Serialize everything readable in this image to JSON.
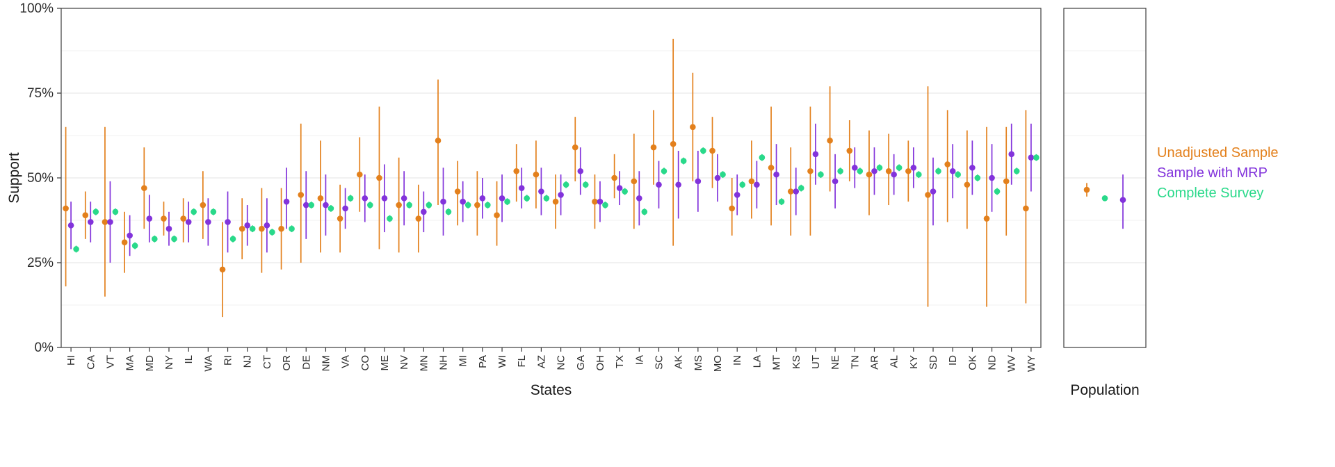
{
  "chart": {
    "legend": [
      {
        "label": "Unadjusted Sample",
        "color": "#E3801C"
      },
      {
        "label": "Sample with MRP",
        "color": "#8233DB"
      },
      {
        "label": "Complete Survey",
        "color": "#29D98A"
      }
    ],
    "axis": {
      "x_title": "States",
      "y_title": "Support",
      "population_title": "Population"
    }
  },
  "chart_data": {
    "type": "scatter",
    "title": "",
    "xlabel": "States",
    "ylabel": "Support",
    "ylim": [
      0,
      100
    ],
    "yticks": [
      0,
      25,
      50,
      75,
      100
    ],
    "ytick_labels": [
      "0%",
      "25%",
      "50%",
      "75%",
      "100%"
    ],
    "grid": "horizontal-major-and-minor",
    "legend_position": "right",
    "categories": [
      "HI",
      "CA",
      "VT",
      "MA",
      "MD",
      "NY",
      "IL",
      "WA",
      "RI",
      "NJ",
      "CT",
      "OR",
      "DE",
      "NM",
      "VA",
      "CO",
      "ME",
      "NV",
      "MN",
      "NH",
      "MI",
      "PA",
      "WI",
      "FL",
      "AZ",
      "NC",
      "GA",
      "OH",
      "TX",
      "IA",
      "SC",
      "AK",
      "MS",
      "MO",
      "IN",
      "LA",
      "MT",
      "KS",
      "UT",
      "NE",
      "TN",
      "AR",
      "AL",
      "KY",
      "SD",
      "ID",
      "OK",
      "ND",
      "WV",
      "WY"
    ],
    "series": [
      {
        "name": "Unadjusted Sample",
        "color": "#E3801C",
        "y": [
          41,
          39,
          37,
          31,
          47,
          38,
          38,
          42,
          23,
          35,
          35,
          35,
          45,
          44,
          38,
          51,
          50,
          42,
          38,
          61,
          46,
          42,
          39,
          52,
          51,
          43,
          59,
          43,
          50,
          49,
          59,
          60,
          65,
          58,
          41,
          49,
          53,
          46,
          52,
          61,
          58,
          51,
          52,
          52,
          45,
          54,
          48,
          38,
          49,
          41
        ],
        "lo": [
          18,
          32,
          15,
          22,
          35,
          33,
          31,
          32,
          9,
          26,
          22,
          23,
          25,
          28,
          28,
          40,
          29,
          28,
          28,
          42,
          36,
          33,
          30,
          43,
          41,
          35,
          49,
          35,
          44,
          35,
          48,
          30,
          49,
          47,
          33,
          38,
          36,
          33,
          33,
          46,
          49,
          39,
          42,
          43,
          12,
          37,
          35,
          12,
          33,
          13
        ],
        "hi": [
          65,
          46,
          65,
          40,
          59,
          43,
          44,
          52,
          37,
          44,
          47,
          47,
          66,
          61,
          48,
          62,
          71,
          56,
          48,
          79,
          55,
          52,
          49,
          60,
          61,
          51,
          68,
          51,
          57,
          63,
          70,
          91,
          81,
          68,
          50,
          61,
          71,
          59,
          71,
          77,
          67,
          64,
          63,
          61,
          77,
          70,
          64,
          65,
          65,
          70
        ]
      },
      {
        "name": "Sample with MRP",
        "color": "#8233DB",
        "y": [
          36,
          37,
          37,
          33,
          38,
          35,
          37,
          37,
          37,
          36,
          36,
          43,
          42,
          42,
          41,
          44,
          44,
          44,
          40,
          43,
          43,
          44,
          44,
          47,
          46,
          45,
          52,
          43,
          47,
          44,
          48,
          48,
          49,
          50,
          45,
          48,
          51,
          46,
          57,
          49,
          53,
          52,
          51,
          53,
          46,
          52,
          53,
          50,
          57,
          56
        ],
        "lo": [
          29,
          31,
          25,
          27,
          31,
          30,
          31,
          30,
          28,
          30,
          28,
          35,
          32,
          33,
          35,
          37,
          34,
          36,
          34,
          33,
          37,
          38,
          37,
          41,
          39,
          39,
          45,
          37,
          42,
          36,
          41,
          38,
          40,
          43,
          39,
          41,
          42,
          39,
          48,
          41,
          47,
          45,
          45,
          47,
          36,
          44,
          45,
          40,
          48,
          46
        ],
        "hi": [
          43,
          43,
          49,
          39,
          45,
          40,
          43,
          44,
          46,
          42,
          44,
          53,
          52,
          51,
          47,
          51,
          54,
          52,
          46,
          53,
          49,
          50,
          51,
          53,
          53,
          51,
          59,
          49,
          52,
          52,
          55,
          58,
          58,
          57,
          51,
          55,
          60,
          53,
          66,
          57,
          59,
          59,
          57,
          59,
          56,
          60,
          61,
          60,
          66,
          66
        ]
      },
      {
        "name": "Complete Survey",
        "color": "#29D98A",
        "y": [
          29,
          40,
          40,
          30,
          32,
          32,
          40,
          40,
          32,
          35,
          34,
          35,
          42,
          41,
          44,
          42,
          38,
          42,
          42,
          40,
          42,
          42,
          43,
          44,
          44,
          48,
          48,
          42,
          46,
          40,
          52,
          55,
          58,
          51,
          48,
          56,
          43,
          47,
          51,
          52,
          52,
          53,
          53,
          51,
          52,
          51,
          50,
          46,
          52,
          56
        ],
        "lo": [
          28,
          39,
          39,
          29,
          31,
          31,
          39,
          39,
          31,
          34,
          33,
          34,
          41,
          40,
          43,
          41,
          37,
          41,
          41,
          39,
          41,
          41,
          42,
          43,
          43,
          47,
          47,
          41,
          45,
          39,
          51,
          54,
          57,
          50,
          47,
          55,
          42,
          46,
          50,
          51,
          51,
          52,
          52,
          50,
          51,
          50,
          49,
          45,
          51,
          55
        ],
        "hi": [
          30,
          41,
          41,
          31,
          33,
          33,
          41,
          41,
          33,
          36,
          35,
          36,
          43,
          42,
          45,
          43,
          39,
          43,
          43,
          41,
          43,
          43,
          44,
          45,
          45,
          49,
          49,
          43,
          47,
          41,
          53,
          56,
          59,
          52,
          49,
          57,
          44,
          48,
          52,
          53,
          53,
          54,
          54,
          52,
          53,
          52,
          51,
          47,
          53,
          57
        ]
      }
    ],
    "population": {
      "label": "Population",
      "points": [
        {
          "series": "Unadjusted Sample",
          "color": "#E3801C",
          "y": 46.5,
          "lo": 44.5,
          "hi": 48.5
        },
        {
          "series": "Complete Survey",
          "color": "#29D98A",
          "y": 44,
          "lo": 43.2,
          "hi": 44.8
        },
        {
          "series": "Sample with MRP",
          "color": "#8233DB",
          "y": 43.5,
          "lo": 35,
          "hi": 51
        }
      ]
    }
  }
}
